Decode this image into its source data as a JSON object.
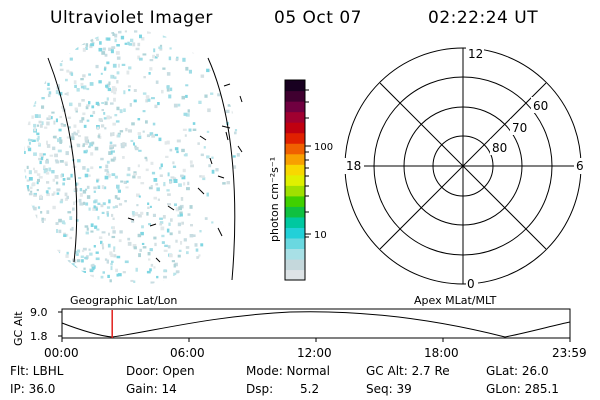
{
  "header": {
    "title": "Ultraviolet Imager",
    "date": "05 Oct 07",
    "time": "02:22:24 UT"
  },
  "colorbar": {
    "label": "photon cm⁻²s⁻¹",
    "ticks": [
      "100",
      "10"
    ],
    "colors": [
      "#dde3e6",
      "#c5d8dc",
      "#a8e0e6",
      "#6ad8e0",
      "#22d0d8",
      "#00c8a0",
      "#10c040",
      "#40d000",
      "#a0e000",
      "#e0f000",
      "#f8d800",
      "#f8a000",
      "#f06000",
      "#e02000",
      "#c00010",
      "#a00030",
      "#700040",
      "#400030",
      "#180020"
    ]
  },
  "polar": {
    "mlt_labels": {
      "top": "12",
      "left": "18",
      "right": "6",
      "bottom": "0"
    },
    "lat_labels": [
      "60",
      "70",
      "80"
    ]
  },
  "projection_labels": {
    "left": "Geographic Lat/Lon",
    "right": "Apex MLat/MLT"
  },
  "orbit_plot": {
    "ylabel": "GC Alt",
    "yticks": [
      "9.0",
      "1.8"
    ],
    "xticks": [
      "00:00",
      "06:00",
      "12:00",
      "18:00",
      "23:59"
    ],
    "marker_time_hours": 2.37
  },
  "status": {
    "flt": "Flt: LBHL",
    "door": "Door: Open",
    "mode": "Mode: Normal",
    "gc_alt": "GC Alt: 2.7 Re",
    "glat": "GLat:  26.0",
    "ip": "IP: 36.0",
    "gain": "Gain: 14",
    "dsp": "Dsp:",
    "dsp_value": "5.2",
    "seq": "Seq: 39",
    "glon": "GLon: 285.1"
  }
}
